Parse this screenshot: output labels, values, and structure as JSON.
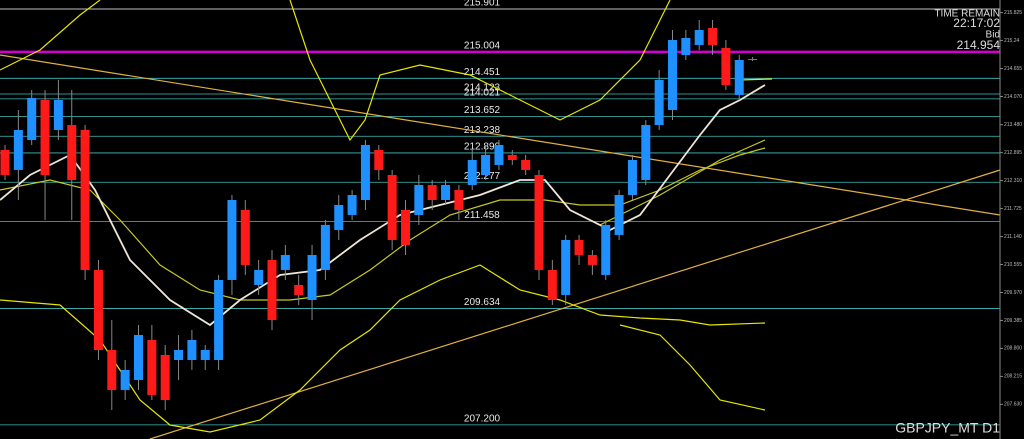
{
  "chart_data": {
    "type": "candlestick",
    "title": "GBPJPY_MT D1",
    "info": {
      "timer_label": "TIME REMAIN",
      "timer": "22:17:02",
      "bid_label": "Bid",
      "bid": "214.954"
    },
    "up_color": "#1e90ff",
    "down_color": "#ff1a1a",
    "ylim": [
      206.905,
      216.089
    ],
    "yticks": [
      215.825,
      215.24,
      214.655,
      {
        "value": 214.07,
        "label": "214.070"
      },
      {
        "value": 213.48,
        "label": "213.480"
      },
      212.895,
      {
        "value": 212.31,
        "label": "212.310"
      },
      211.725,
      {
        "value": 211.14,
        "label": "211.140"
      },
      210.555,
      {
        "value": 209.97,
        "label": "209.970"
      },
      209.385,
      {
        "value": 208.8,
        "label": "208.800"
      },
      208.215,
      {
        "value": 207.63,
        "label": "207.630"
      }
    ],
    "levels": [
      215.901,
      215.004,
      214.451,
      214.123,
      214.021,
      213.652,
      213.238,
      {
        "value": 212.89,
        "label": "212.890"
      },
      212.277,
      211.458,
      209.634,
      {
        "value": 207.2,
        "label": "207.200"
      }
    ],
    "level_colors": [
      "#ffffff",
      "#d000d0",
      "#40c0c0",
      "#40c0c0",
      "#40c0c0",
      "#40c0c0",
      "#40c0c0",
      "#40c0c0",
      "#40c0c0",
      "#40c0c0",
      "#40c0c0",
      "#40c0c0"
    ],
    "open": [
      212.951,
      212.533,
      213.16,
      213.997,
      213.37,
      213.474,
      213.37,
      210.441,
      208.767,
      207.931,
      208.14,
      208.977,
      208.663,
      208.558,
      208.558,
      208.558,
      208.558,
      210.232,
      211.696,
      210.128,
      210.65,
      210.441,
      210.128,
      209.813,
      210.441,
      211.278,
      211.592,
      211.905,
      212.951,
      212.428,
      211.696,
      211.592,
      212.219,
      211.905,
      212.115,
      212.219,
      212.428,
      212.638,
      212.847,
      212.742,
      212.428,
      210.441,
      209.918,
      211.069,
      210.755,
      210.337,
      211.174,
      212.01,
      212.324,
      213.474,
      213.788,
      214.938,
      215.148,
      215.504,
      215.085,
      214.102,
      214.834
    ],
    "high": [
      213.056,
      213.788,
      214.206,
      214.206,
      214.416,
      214.206,
      213.474,
      210.65,
      209.395,
      208.558,
      209.29,
      209.29,
      208.872,
      209.081,
      209.186,
      208.872,
      210.337,
      212.01,
      211.905,
      210.65,
      210.859,
      210.964,
      210.337,
      210.964,
      211.487,
      212.01,
      212.115,
      213.16,
      213.056,
      212.533,
      211.905,
      212.428,
      212.324,
      212.324,
      212.219,
      212.951,
      213.056,
      213.16,
      212.951,
      212.847,
      212.533,
      210.65,
      211.174,
      211.174,
      210.859,
      211.487,
      212.115,
      212.847,
      213.579,
      214.625,
      215.462,
      215.462,
      215.671,
      215.671,
      215.252,
      214.938,
      214.897
    ],
    "low": [
      212.324,
      211.905,
      213.056,
      211.487,
      213.16,
      211.487,
      210.232,
      208.558,
      207.512,
      207.721,
      207.931,
      207.721,
      207.512,
      208.14,
      208.349,
      208.349,
      208.349,
      209.918,
      210.337,
      209.918,
      209.186,
      210.232,
      209.709,
      209.395,
      210.232,
      211.069,
      211.487,
      211.696,
      212.324,
      210.859,
      210.755,
      211.383,
      211.696,
      211.801,
      211.487,
      212.115,
      212.324,
      212.533,
      212.638,
      212.428,
      210.232,
      209.709,
      209.709,
      210.546,
      210.337,
      210.232,
      211.069,
      211.905,
      212.219,
      213.37,
      213.579,
      214.834,
      215.043,
      214.938,
      214.206,
      213.997,
      214.813
    ],
    "close": [
      212.428,
      213.37,
      214.039,
      212.428,
      213.997,
      212.324,
      210.441,
      208.767,
      207.931,
      208.349,
      209.081,
      207.826,
      207.721,
      208.767,
      208.977,
      208.767,
      210.232,
      211.905,
      210.546,
      210.441,
      209.395,
      210.755,
      209.918,
      210.755,
      211.383,
      211.801,
      212.01,
      213.056,
      212.533,
      211.069,
      210.964,
      212.219,
      211.905,
      212.219,
      211.696,
      212.742,
      212.847,
      213.056,
      212.742,
      212.533,
      210.441,
      209.813,
      211.069,
      210.755,
      210.546,
      211.383,
      212.01,
      212.742,
      213.474,
      214.416,
      215.252,
      215.295,
      215.462,
      215.148,
      214.311,
      214.834,
      214.855
    ]
  }
}
